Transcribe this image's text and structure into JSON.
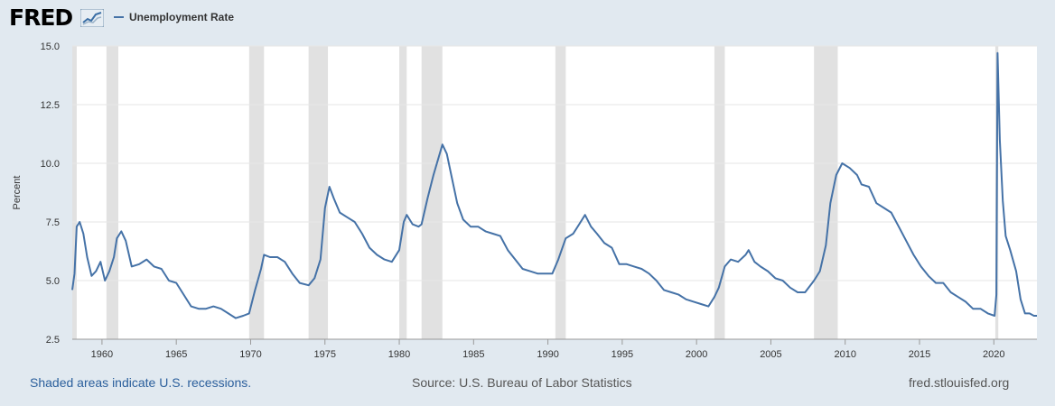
{
  "brand": {
    "name": "FRED",
    "badge_icon": "line-chart-icon"
  },
  "footer": {
    "recessions_note": "Shaded areas indicate U.S. recessions.",
    "source": "Source: U.S. Bureau of Labor Statistics",
    "site": "fred.stlouisfed.org"
  },
  "colors": {
    "series": "#4572a7",
    "recession": "#e1e1e1",
    "background": "#e1e9f0"
  },
  "chart_data": {
    "type": "line",
    "title": "",
    "xlabel": "",
    "ylabel": "Percent",
    "xlim": [
      1958.0,
      2022.9
    ],
    "ylim": [
      2.5,
      15.0
    ],
    "x_ticks": [
      1960,
      1965,
      1970,
      1975,
      1980,
      1985,
      1990,
      1995,
      2000,
      2005,
      2010,
      2015,
      2020
    ],
    "y_ticks": [
      "2.5",
      "5.0",
      "7.5",
      "10.0",
      "12.5",
      "15.0"
    ],
    "grid": true,
    "legend": "top-left",
    "recessions": [
      [
        1958.0,
        1958.3
      ],
      [
        1960.3,
        1961.1
      ],
      [
        1969.9,
        1970.9
      ],
      [
        1973.9,
        1975.2
      ],
      [
        1980.0,
        1980.5
      ],
      [
        1981.5,
        1982.9
      ],
      [
        1990.5,
        1991.2
      ],
      [
        2001.2,
        2001.9
      ],
      [
        2007.9,
        2009.5
      ],
      [
        2020.1,
        2020.3
      ]
    ],
    "series": [
      {
        "name": "Unemployment Rate",
        "points": [
          [
            1958.0,
            4.6
          ],
          [
            1958.15,
            5.3
          ],
          [
            1958.3,
            7.3
          ],
          [
            1958.5,
            7.5
          ],
          [
            1958.75,
            7.0
          ],
          [
            1959.0,
            6.0
          ],
          [
            1959.3,
            5.2
          ],
          [
            1959.6,
            5.4
          ],
          [
            1959.9,
            5.8
          ],
          [
            1960.2,
            5.0
          ],
          [
            1960.5,
            5.4
          ],
          [
            1960.8,
            6.0
          ],
          [
            1961.0,
            6.8
          ],
          [
            1961.3,
            7.1
          ],
          [
            1961.6,
            6.7
          ],
          [
            1962.0,
            5.6
          ],
          [
            1962.5,
            5.7
          ],
          [
            1963.0,
            5.9
          ],
          [
            1963.5,
            5.6
          ],
          [
            1964.0,
            5.5
          ],
          [
            1964.5,
            5.0
          ],
          [
            1965.0,
            4.9
          ],
          [
            1965.5,
            4.4
          ],
          [
            1966.0,
            3.9
          ],
          [
            1966.5,
            3.8
          ],
          [
            1967.0,
            3.8
          ],
          [
            1967.5,
            3.9
          ],
          [
            1968.0,
            3.8
          ],
          [
            1968.5,
            3.6
          ],
          [
            1969.0,
            3.4
          ],
          [
            1969.5,
            3.5
          ],
          [
            1969.9,
            3.6
          ],
          [
            1970.3,
            4.6
          ],
          [
            1970.7,
            5.5
          ],
          [
            1970.9,
            6.1
          ],
          [
            1971.3,
            6.0
          ],
          [
            1971.8,
            6.0
          ],
          [
            1972.3,
            5.8
          ],
          [
            1972.8,
            5.3
          ],
          [
            1973.3,
            4.9
          ],
          [
            1973.9,
            4.8
          ],
          [
            1974.3,
            5.1
          ],
          [
            1974.7,
            5.9
          ],
          [
            1975.0,
            8.1
          ],
          [
            1975.3,
            9.0
          ],
          [
            1975.6,
            8.5
          ],
          [
            1976.0,
            7.9
          ],
          [
            1976.5,
            7.7
          ],
          [
            1977.0,
            7.5
          ],
          [
            1977.5,
            7.0
          ],
          [
            1978.0,
            6.4
          ],
          [
            1978.5,
            6.1
          ],
          [
            1979.0,
            5.9
          ],
          [
            1979.5,
            5.8
          ],
          [
            1980.0,
            6.3
          ],
          [
            1980.3,
            7.5
          ],
          [
            1980.5,
            7.8
          ],
          [
            1980.9,
            7.4
          ],
          [
            1981.3,
            7.3
          ],
          [
            1981.5,
            7.4
          ],
          [
            1981.9,
            8.5
          ],
          [
            1982.3,
            9.5
          ],
          [
            1982.9,
            10.8
          ],
          [
            1983.2,
            10.4
          ],
          [
            1983.5,
            9.5
          ],
          [
            1983.9,
            8.3
          ],
          [
            1984.3,
            7.6
          ],
          [
            1984.8,
            7.3
          ],
          [
            1985.3,
            7.3
          ],
          [
            1985.8,
            7.1
          ],
          [
            1986.3,
            7.0
          ],
          [
            1986.8,
            6.9
          ],
          [
            1987.3,
            6.3
          ],
          [
            1987.8,
            5.9
          ],
          [
            1988.3,
            5.5
          ],
          [
            1988.8,
            5.4
          ],
          [
            1989.3,
            5.3
          ],
          [
            1989.8,
            5.3
          ],
          [
            1990.3,
            5.3
          ],
          [
            1990.7,
            5.9
          ],
          [
            1991.2,
            6.8
          ],
          [
            1991.7,
            7.0
          ],
          [
            1992.1,
            7.4
          ],
          [
            1992.5,
            7.8
          ],
          [
            1992.9,
            7.3
          ],
          [
            1993.3,
            7.0
          ],
          [
            1993.8,
            6.6
          ],
          [
            1994.3,
            6.4
          ],
          [
            1994.8,
            5.7
          ],
          [
            1995.3,
            5.7
          ],
          [
            1995.8,
            5.6
          ],
          [
            1996.3,
            5.5
          ],
          [
            1996.8,
            5.3
          ],
          [
            1997.3,
            5.0
          ],
          [
            1997.8,
            4.6
          ],
          [
            1998.3,
            4.5
          ],
          [
            1998.8,
            4.4
          ],
          [
            1999.3,
            4.2
          ],
          [
            1999.8,
            4.1
          ],
          [
            2000.3,
            4.0
          ],
          [
            2000.8,
            3.9
          ],
          [
            2001.2,
            4.3
          ],
          [
            2001.5,
            4.7
          ],
          [
            2001.9,
            5.6
          ],
          [
            2002.3,
            5.9
          ],
          [
            2002.8,
            5.8
          ],
          [
            2003.3,
            6.1
          ],
          [
            2003.5,
            6.3
          ],
          [
            2003.9,
            5.8
          ],
          [
            2004.3,
            5.6
          ],
          [
            2004.8,
            5.4
          ],
          [
            2005.3,
            5.1
          ],
          [
            2005.8,
            5.0
          ],
          [
            2006.3,
            4.7
          ],
          [
            2006.8,
            4.5
          ],
          [
            2007.3,
            4.5
          ],
          [
            2007.9,
            5.0
          ],
          [
            2008.3,
            5.4
          ],
          [
            2008.7,
            6.5
          ],
          [
            2009.0,
            8.3
          ],
          [
            2009.4,
            9.5
          ],
          [
            2009.8,
            10.0
          ],
          [
            2010.3,
            9.8
          ],
          [
            2010.8,
            9.5
          ],
          [
            2011.1,
            9.1
          ],
          [
            2011.6,
            9.0
          ],
          [
            2012.1,
            8.3
          ],
          [
            2012.6,
            8.1
          ],
          [
            2013.1,
            7.9
          ],
          [
            2013.6,
            7.3
          ],
          [
            2014.1,
            6.7
          ],
          [
            2014.6,
            6.1
          ],
          [
            2015.1,
            5.6
          ],
          [
            2015.6,
            5.2
          ],
          [
            2016.1,
            4.9
          ],
          [
            2016.6,
            4.9
          ],
          [
            2017.1,
            4.5
          ],
          [
            2017.6,
            4.3
          ],
          [
            2018.1,
            4.1
          ],
          [
            2018.6,
            3.8
          ],
          [
            2019.1,
            3.8
          ],
          [
            2019.6,
            3.6
          ],
          [
            2020.05,
            3.5
          ],
          [
            2020.17,
            4.4
          ],
          [
            2020.25,
            14.7
          ],
          [
            2020.4,
            11.0
          ],
          [
            2020.6,
            8.4
          ],
          [
            2020.8,
            6.9
          ],
          [
            2021.1,
            6.3
          ],
          [
            2021.5,
            5.4
          ],
          [
            2021.8,
            4.2
          ],
          [
            2022.1,
            3.6
          ],
          [
            2022.4,
            3.6
          ],
          [
            2022.7,
            3.5
          ],
          [
            2022.9,
            3.5
          ]
        ]
      }
    ]
  }
}
